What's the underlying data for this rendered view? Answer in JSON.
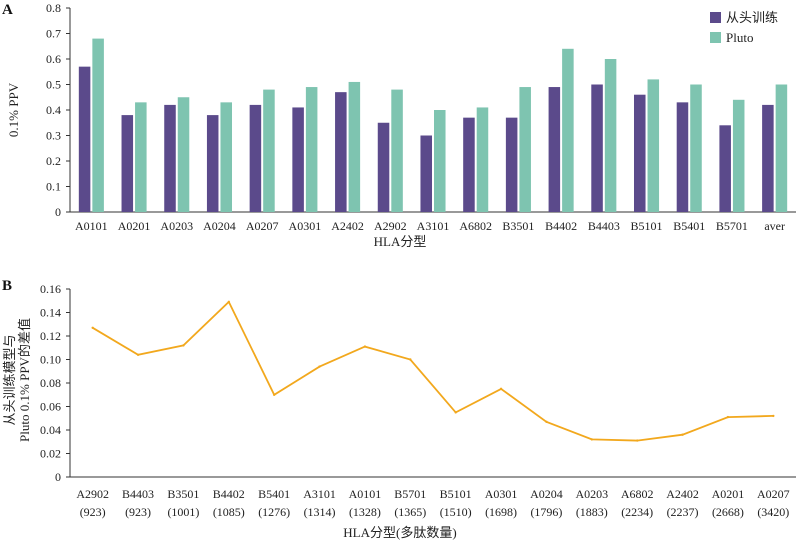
{
  "chart_data": [
    {
      "panel": "A",
      "type": "bar",
      "categories": [
        "A0101",
        "A0201",
        "A0203",
        "A0204",
        "A0207",
        "A0301",
        "A2402",
        "A2902",
        "A3101",
        "A6802",
        "B3501",
        "B4402",
        "B4403",
        "B5101",
        "B5401",
        "B5701",
        "aver"
      ],
      "series": [
        {
          "name": "从头训练",
          "color": "#5b4a8b",
          "values": [
            0.57,
            0.38,
            0.42,
            0.38,
            0.42,
            0.41,
            0.47,
            0.35,
            0.3,
            0.37,
            0.37,
            0.49,
            0.5,
            0.46,
            0.43,
            0.34,
            0.42
          ]
        },
        {
          "name": "Pluto",
          "color": "#7ec4b0",
          "values": [
            0.68,
            0.43,
            0.45,
            0.43,
            0.48,
            0.49,
            0.51,
            0.48,
            0.4,
            0.41,
            0.49,
            0.64,
            0.6,
            0.52,
            0.5,
            0.44,
            0.5
          ]
        }
      ],
      "xlabel": "HLA分型",
      "ylabel": "0.1% PPV",
      "ylim": [
        0,
        0.8
      ],
      "yticks": [
        0,
        0.1,
        0.2,
        0.3,
        0.4,
        0.5,
        0.6,
        0.7,
        0.8
      ],
      "legend_position": "top-right",
      "grid": false
    },
    {
      "panel": "B",
      "type": "line",
      "categories": [
        "A2902",
        "B4403",
        "B3501",
        "B4402",
        "B5401",
        "A3101",
        "A0101",
        "B5701",
        "B5101",
        "A0301",
        "A0204",
        "A0203",
        "A6802",
        "A2402",
        "A0201",
        "A0207"
      ],
      "counts": [
        "(923)",
        "(923)",
        "(1001)",
        "(1085)",
        "(1276)",
        "(1314)",
        "(1328)",
        "(1365)",
        "(1510)",
        "(1698)",
        "(1796)",
        "(1883)",
        "(2234)",
        "(2237)",
        "(2668)",
        "(3420)"
      ],
      "series": [
        {
          "color": "#f2a81d",
          "values": [
            0.127,
            0.104,
            0.112,
            0.149,
            0.07,
            0.094,
            0.111,
            0.1,
            0.055,
            0.075,
            0.047,
            0.032,
            0.031,
            0.036,
            0.051,
            0.052
          ]
        }
      ],
      "xlabel": "HLA分型(多肽数量)",
      "ylabel_lines": [
        "从头训练模型与",
        "Pluto 0.1% PPV的差值"
      ],
      "ylim": [
        0,
        0.16
      ],
      "yticks": [
        0,
        0.02,
        0.04,
        0.06,
        0.08,
        0.1,
        0.12,
        0.14,
        0.16
      ],
      "ytick_labels": [
        "0",
        "0.02",
        "0.04",
        "0.06",
        "0.08",
        "0.10",
        "0.12",
        "0.14",
        "0.16"
      ],
      "grid": false
    }
  ]
}
